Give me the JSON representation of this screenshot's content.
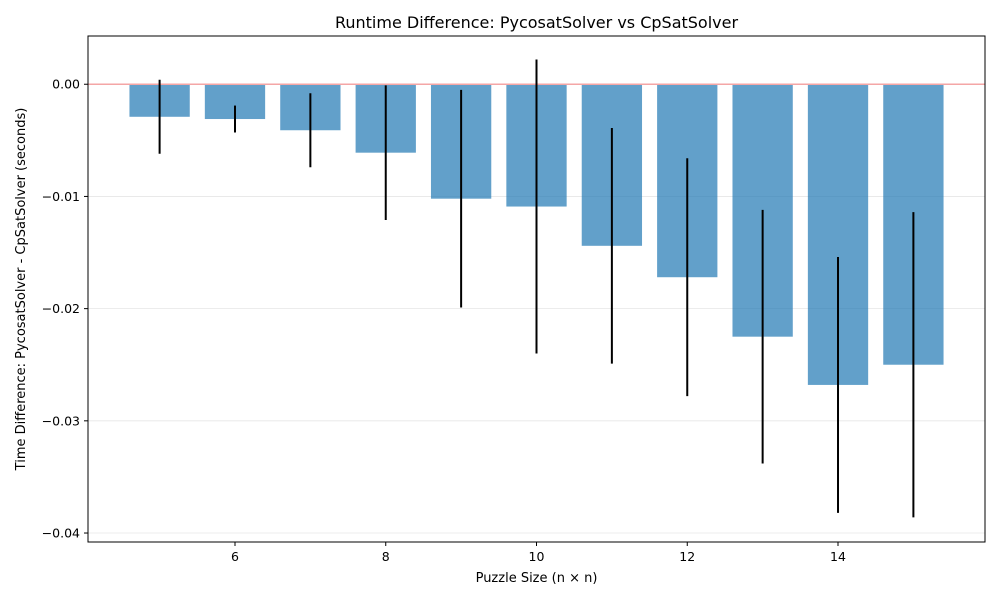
{
  "chart_data": {
    "type": "bar",
    "title": "Runtime Difference: PycosatSolver vs CpSatSolver",
    "xlabel": "Puzzle Size (n × n)",
    "ylabel": "Time Difference: PycosatSolver - CpSatSolver (seconds)",
    "x": [
      5,
      6,
      7,
      8,
      9,
      10,
      11,
      12,
      13,
      14,
      15
    ],
    "values": [
      -0.0029,
      -0.0031,
      -0.0041,
      -0.0061,
      -0.0102,
      -0.0109,
      -0.0144,
      -0.0172,
      -0.0225,
      -0.0268,
      -0.025
    ],
    "error": [
      0.0033,
      0.0012,
      0.0033,
      0.006,
      0.0097,
      0.0131,
      0.0105,
      0.0106,
      0.0113,
      0.0114,
      0.0136
    ],
    "xlim": [
      4.05,
      15.95
    ],
    "ylim": [
      -0.0408,
      0.0043
    ],
    "x_ticks": [
      6,
      8,
      10,
      12,
      14
    ],
    "x_tick_labels": [
      "6",
      "8",
      "10",
      "12",
      "14"
    ],
    "y_ticks": [
      0.0,
      -0.01,
      -0.02,
      -0.03,
      -0.04
    ],
    "y_tick_labels": [
      "0.00",
      "−0.01",
      "−0.02",
      "−0.03",
      "−0.04"
    ],
    "reference_line": 0,
    "grid": "horizontal",
    "legend": "none",
    "colors": {
      "bar": "#1f77b4",
      "error_bar": "#000000",
      "reference_line": "#f4a6a6",
      "grid": "#e6e6e6"
    }
  }
}
